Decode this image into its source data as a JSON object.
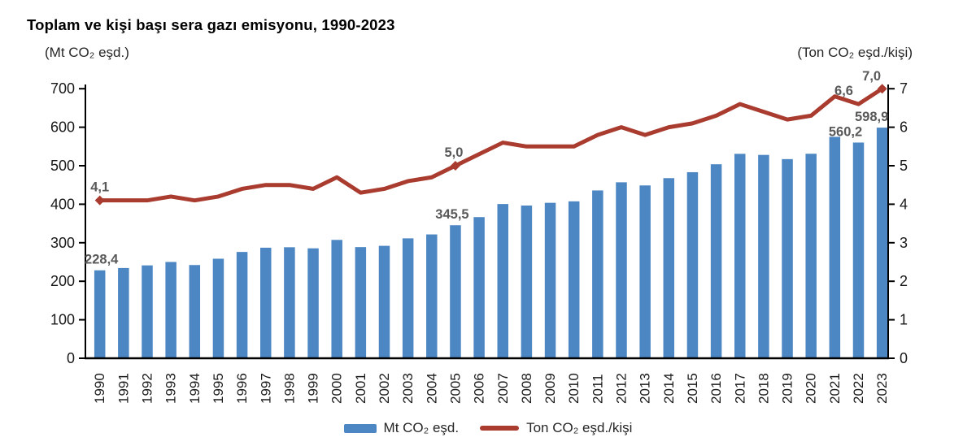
{
  "title": "Toplam ve kişi başı sera gazı emisyonu, 1990-2023",
  "chart_data": {
    "type": "combo-bar-line-dual-axis",
    "categories": [
      "1990",
      "1991",
      "1992",
      "1993",
      "1994",
      "1995",
      "1996",
      "1997",
      "1998",
      "1999",
      "2000",
      "2001",
      "2002",
      "2003",
      "2004",
      "2005",
      "2006",
      "2007",
      "2008",
      "2009",
      "2010",
      "2011",
      "2012",
      "2013",
      "2014",
      "2015",
      "2016",
      "2017",
      "2018",
      "2019",
      "2020",
      "2021",
      "2022",
      "2023"
    ],
    "series": [
      {
        "name": "Mt CO₂ eşd.",
        "type": "bar",
        "axis": "left",
        "color": "#4D87C3",
        "values": [
          228.4,
          234.4,
          241.2,
          250.1,
          242.1,
          258.5,
          276.1,
          287.1,
          288.3,
          285.5,
          307.4,
          288.7,
          292.0,
          311.4,
          321.6,
          345.5,
          366.6,
          400.6,
          396.6,
          403.7,
          407.5,
          435.8,
          457.0,
          448.8,
          467.8,
          483.2,
          503.8,
          530.9,
          528.1,
          517.2,
          531.1,
          575.1,
          560.2,
          598.9
        ]
      },
      {
        "name": "Ton CO₂ eşd./kişi",
        "type": "line",
        "axis": "right",
        "color": "#A93B2F",
        "values": [
          4.1,
          4.1,
          4.1,
          4.2,
          4.1,
          4.2,
          4.4,
          4.5,
          4.5,
          4.4,
          4.7,
          4.3,
          4.4,
          4.6,
          4.7,
          5.0,
          5.3,
          5.6,
          5.5,
          5.5,
          5.5,
          5.8,
          6.0,
          5.8,
          6.0,
          6.1,
          6.3,
          6.6,
          6.4,
          6.2,
          6.3,
          6.8,
          6.6,
          7.0
        ]
      }
    ],
    "left_axis": {
      "label": "(Mt CO₂ eşd.)",
      "min": 0,
      "max": 700,
      "tick_step": 100,
      "ticks": [
        "0",
        "100",
        "200",
        "300",
        "400",
        "500",
        "600",
        "700"
      ]
    },
    "right_axis": {
      "label": "(Ton CO₂ eşd./kişi)",
      "min": 0,
      "max": 7,
      "tick_step": 1,
      "ticks": [
        "0",
        "1",
        "2",
        "3",
        "4",
        "5",
        "6",
        "7"
      ]
    },
    "annotations": {
      "bar": [
        {
          "index": 0,
          "text": "228,4"
        },
        {
          "index": 15,
          "text": "345,5"
        },
        {
          "index": 32,
          "text": "560,2"
        },
        {
          "index": 33,
          "text": "598,9"
        }
      ],
      "line": [
        {
          "index": 0,
          "text": "4,1"
        },
        {
          "index": 15,
          "text": "5,0"
        },
        {
          "index": 32,
          "text": "6,6"
        },
        {
          "index": 33,
          "text": "7,0"
        }
      ]
    },
    "markers": [
      0,
      15,
      33
    ],
    "grid": false,
    "legend_position": "bottom",
    "annotation_color": "#595959",
    "axis_color": "#000000",
    "tick_text_color": "#1a1a1a"
  }
}
